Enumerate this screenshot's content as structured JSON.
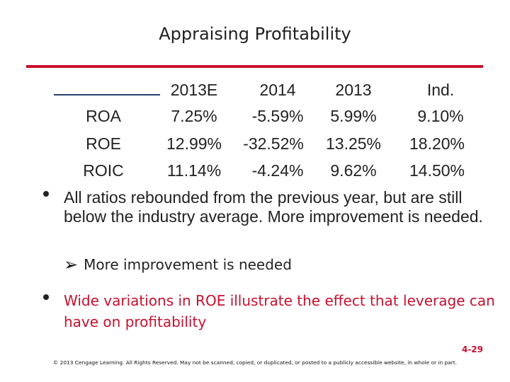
{
  "title": "Appraising Profitability",
  "table": {
    "columns": [
      "2013E",
      "2014",
      "2013",
      "Ind."
    ],
    "rows": [
      {
        "label": "ROA",
        "values": [
          "7.25%",
          "-5.59%",
          "5.99%",
          "9.10%"
        ]
      },
      {
        "label": "ROE",
        "values": [
          "12.99%",
          "-32.52%",
          "13.25%",
          "18.20%"
        ]
      },
      {
        "label": "ROIC",
        "values": [
          "11.14%",
          "-4.24%",
          "9.62%",
          "14.50%"
        ]
      }
    ]
  },
  "bullets": {
    "first": "All ratios rebounded from the previous year, but are still below the industry average.  More improvement is needed.",
    "sub": "More improvement is needed",
    "second": "Wide variations in ROE illustrate the effect that leverage can have on profitability"
  },
  "page_number": "4-29",
  "footer": "© 2013 Cengage Learning. All Rights Reserved. May not be scanned, copied, or duplicated, or posted to a publicly accessible website, in whole or in part.",
  "colors": {
    "accent": "#c8102e",
    "rule": "#27406b"
  }
}
